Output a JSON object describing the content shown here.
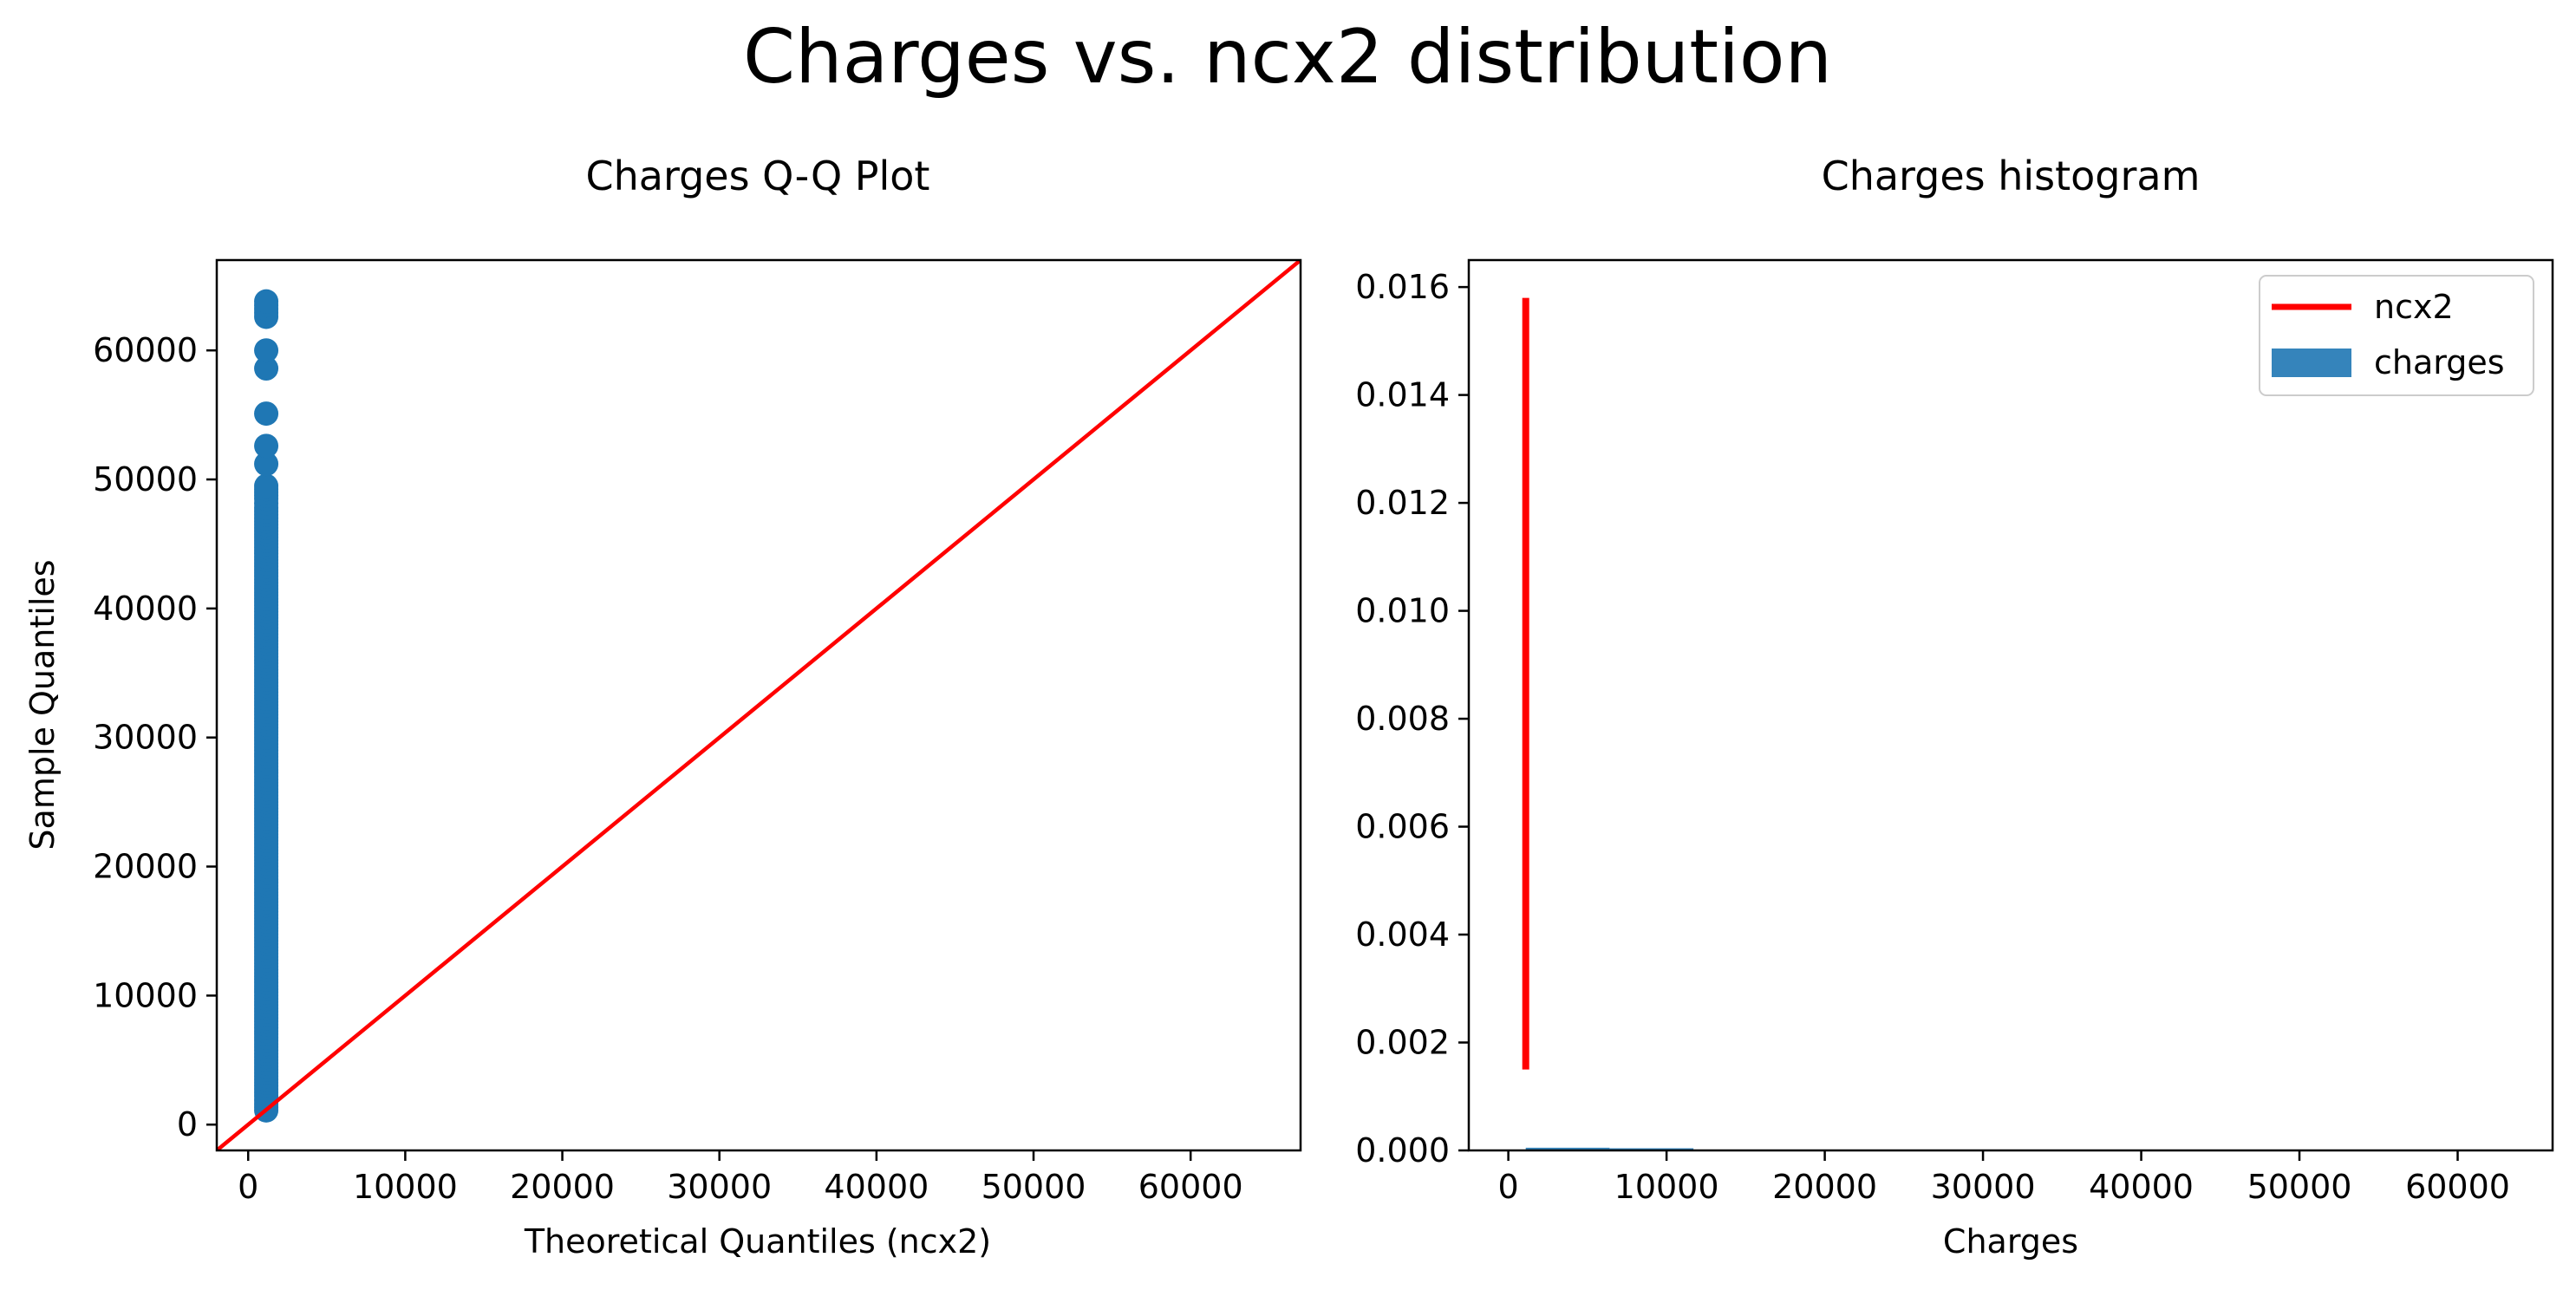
{
  "figure": {
    "suptitle": "Charges vs. ncx2 distribution"
  },
  "chart_data": [
    {
      "type": "scatter",
      "title": "Charges Q-Q Plot",
      "xlabel": "Theoretical Quantiles (ncx2)",
      "ylabel": "Sample Quantiles",
      "xlim": [
        -2000,
        67000
      ],
      "ylim": [
        -2000,
        67000
      ],
      "xticks": [
        0,
        10000,
        20000,
        30000,
        40000,
        50000,
        60000
      ],
      "yticks": [
        0,
        10000,
        20000,
        30000,
        40000,
        50000,
        60000
      ],
      "xtick_labels": [
        "0",
        "10000",
        "20000",
        "30000",
        "40000",
        "50000",
        "60000"
      ],
      "ytick_labels": [
        "0",
        "10000",
        "20000",
        "30000",
        "40000",
        "50000",
        "60000"
      ],
      "points_x": 1150,
      "points_y": [
        1100,
        1600,
        2200,
        3000,
        4000,
        5000,
        6000,
        7000,
        8000,
        9000,
        10000,
        11000,
        12000,
        13000,
        14000,
        15000,
        16000,
        17000,
        18000,
        19000,
        20000,
        21000,
        22000,
        23000,
        24000,
        25000,
        26000,
        27000,
        28000,
        29000,
        30000,
        31000,
        32000,
        33000,
        34000,
        35000,
        36000,
        37000,
        38000,
        39000,
        40000,
        41000,
        42000,
        43000,
        44000,
        45000,
        46000,
        47000,
        47800,
        48500,
        49500,
        51200,
        52600,
        55100,
        58600,
        60000,
        62600,
        63800
      ],
      "reference_line": {
        "x": [
          -2000,
          67000
        ],
        "y": [
          -2000,
          67000
        ],
        "color": "#ff0000"
      },
      "point_color": "#1f77b4",
      "grid": false
    },
    {
      "type": "bar",
      "title": "Charges histogram",
      "xlabel": "Charges",
      "ylabel": "",
      "xlim": [
        -2500,
        66000
      ],
      "ylim": [
        0,
        0.0165
      ],
      "xticks": [
        0,
        10000,
        20000,
        30000,
        40000,
        50000,
        60000
      ],
      "yticks": [
        0.0,
        0.002,
        0.004,
        0.006,
        0.008,
        0.01,
        0.012,
        0.014,
        0.016
      ],
      "xtick_labels": [
        "0",
        "10000",
        "20000",
        "30000",
        "40000",
        "50000",
        "60000"
      ],
      "ytick_labels": [
        "0.000",
        "0.002",
        "0.004",
        "0.006",
        "0.008",
        "0.010",
        "0.012",
        "0.014",
        "0.016"
      ],
      "series": [
        {
          "name": "charges",
          "kind": "histogram",
          "bin_edges": [
            1100,
            6400,
            11700,
            17000,
            22300,
            27600,
            32900,
            38200,
            43500,
            48800,
            54100,
            59400,
            64700
          ],
          "values": [
            5e-05,
            4e-05,
            1.5e-05,
            8e-06,
            4e-06,
            3e-06,
            4e-06,
            4e-06,
            3e-06,
            1e-06,
            3e-07,
            2e-07
          ],
          "color": "#1f77b4"
        },
        {
          "name": "ncx2",
          "kind": "line",
          "x": [
            1100,
            1100
          ],
          "y": [
            0.0015,
            0.0158
          ],
          "color": "#ff0000"
        }
      ],
      "legend": {
        "position": "top-right",
        "entries": [
          "ncx2",
          "charges"
        ]
      },
      "grid": false
    }
  ]
}
